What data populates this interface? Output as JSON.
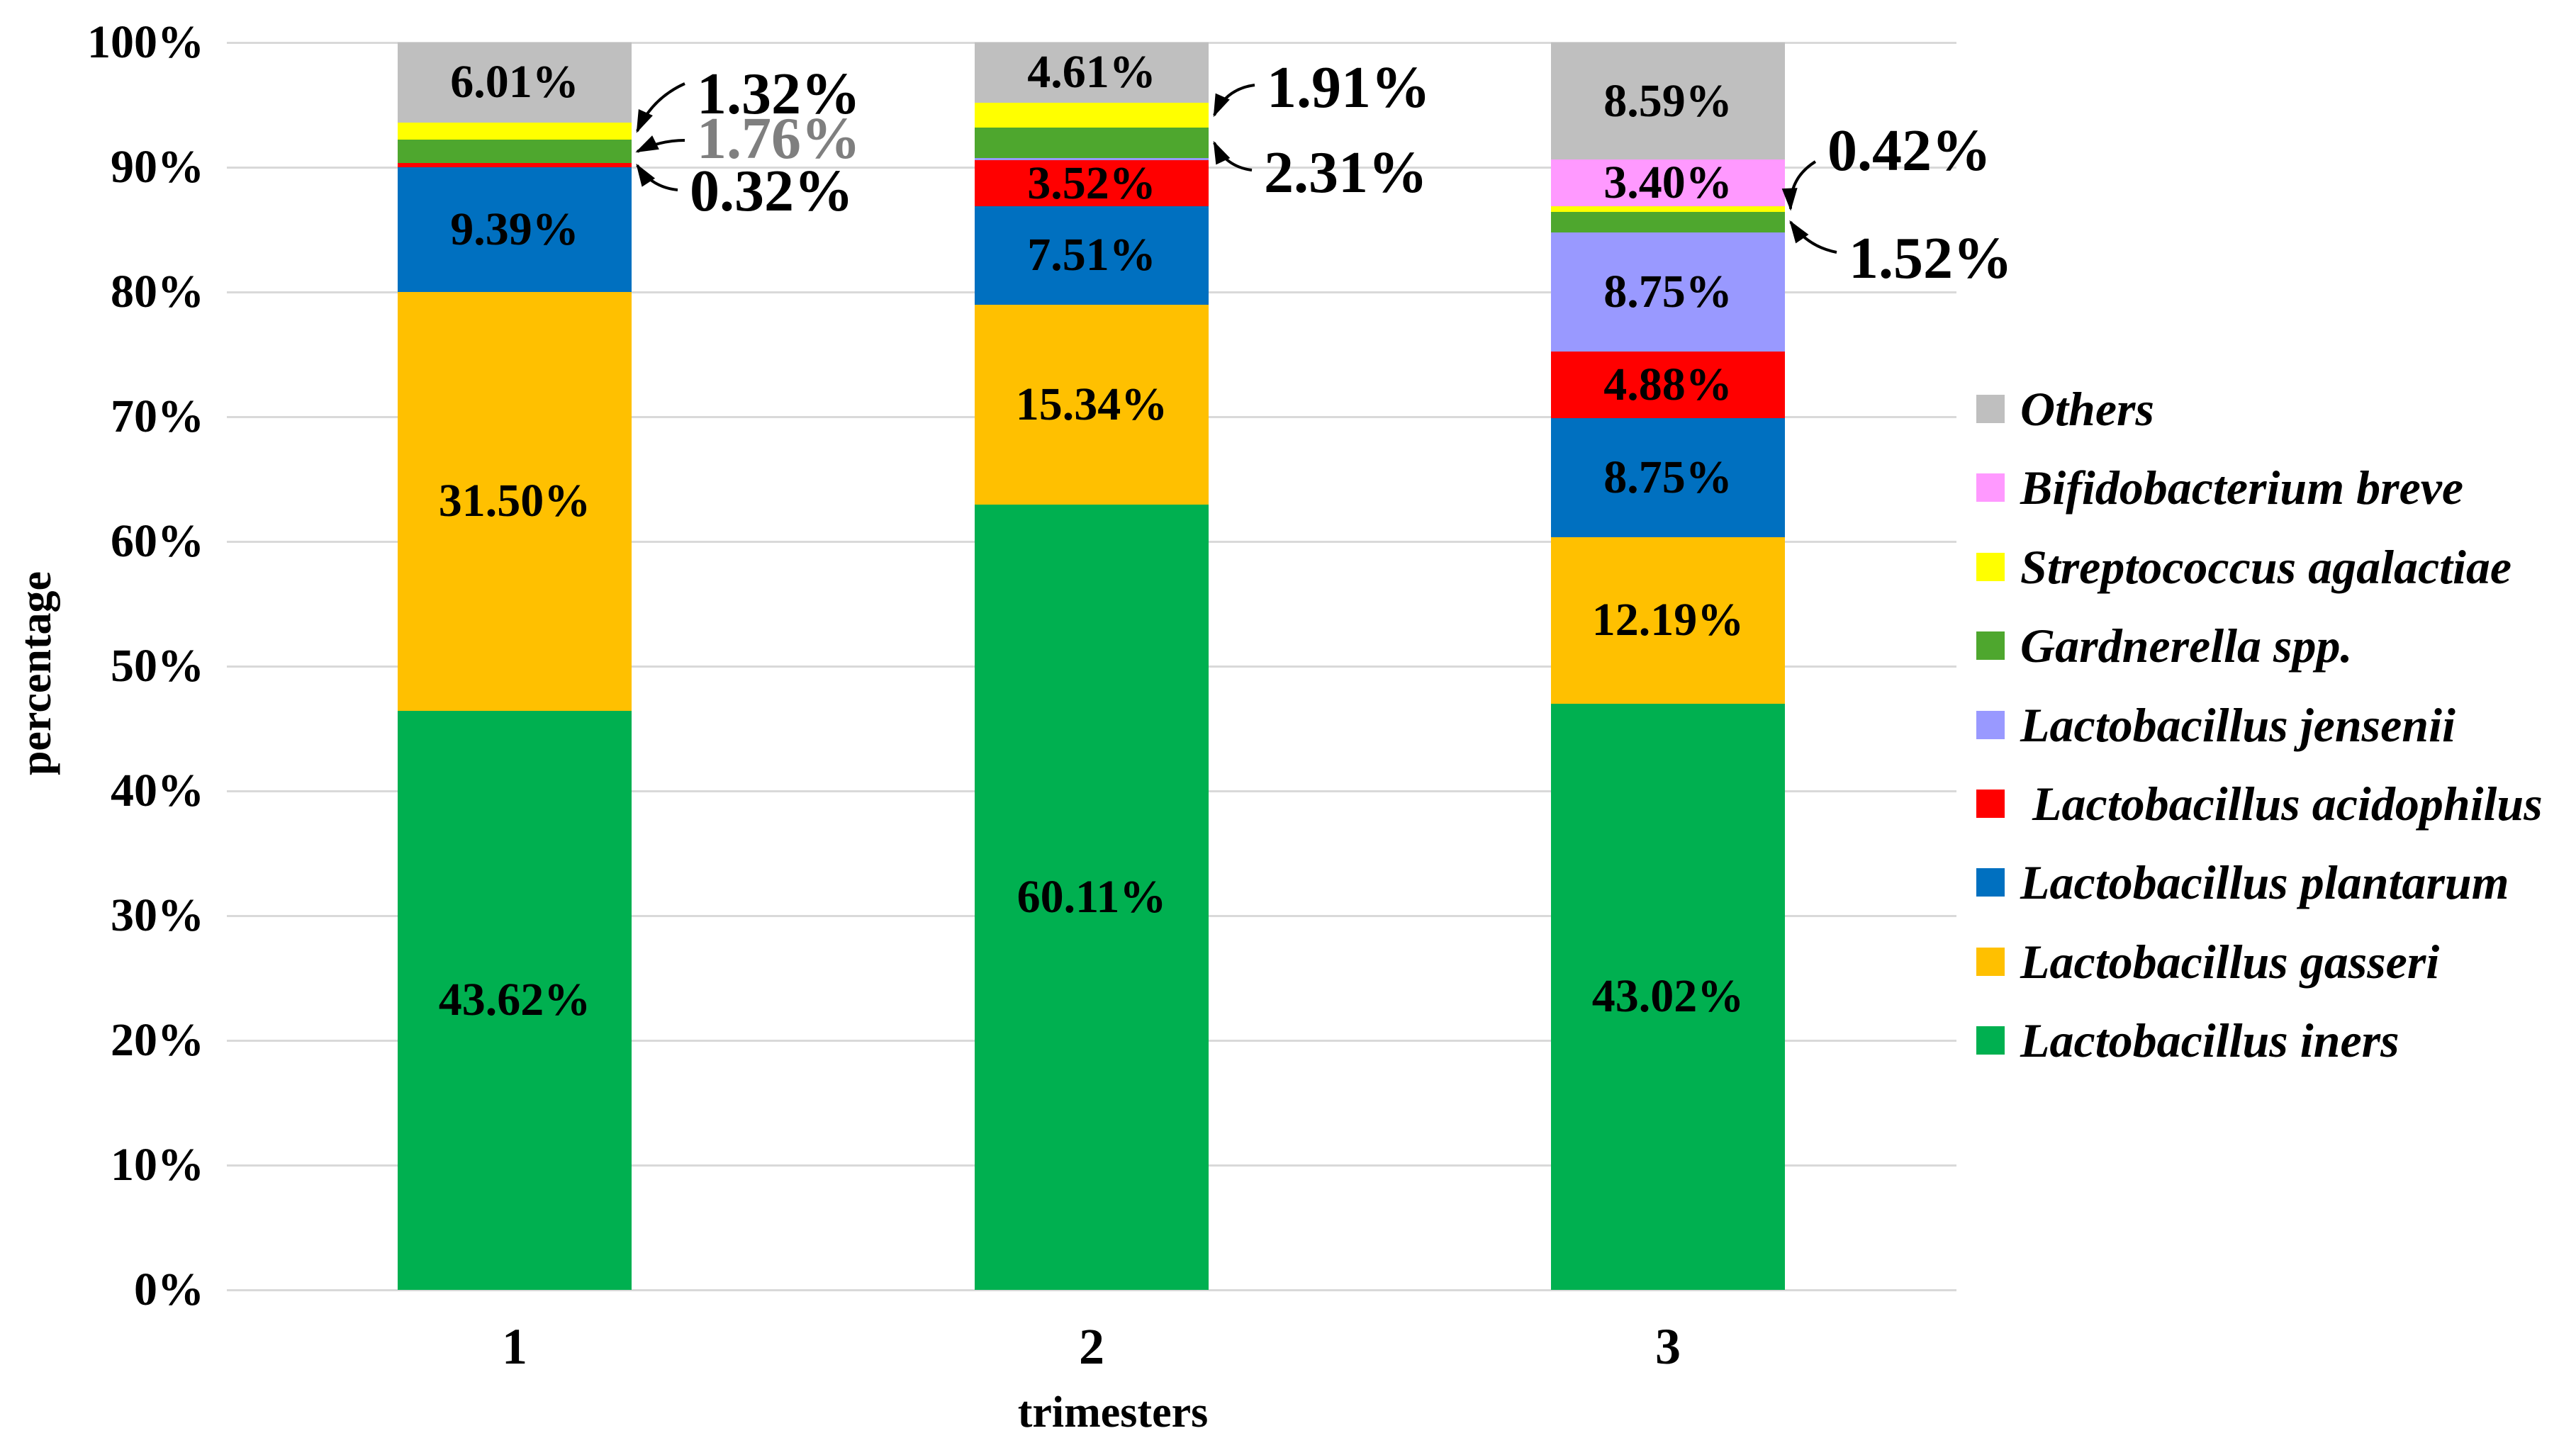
{
  "chart_data": {
    "type": "bar",
    "stacked": true,
    "normalized_per_bar": true,
    "title": "",
    "xlabel": "trimesters",
    "ylabel": "percentage",
    "categories": [
      "1",
      "2",
      "3"
    ],
    "y_ticks": [
      "0%",
      "10%",
      "20%",
      "30%",
      "40%",
      "50%",
      "60%",
      "70%",
      "80%",
      "90%",
      "100%"
    ],
    "ylim": [
      0,
      100
    ],
    "grid": true,
    "legend_position": "right",
    "series": [
      {
        "name": "Lactobacillus iners",
        "color": "#00B050",
        "values": [
          43.62,
          60.11,
          43.02
        ]
      },
      {
        "name": "Lactobacillus gasseri",
        "color": "#FFC000",
        "values": [
          31.5,
          15.34,
          12.19
        ]
      },
      {
        "name": "Lactobacillus plantarum",
        "color": "#0070C0",
        "values": [
          9.39,
          7.51,
          8.75
        ]
      },
      {
        "name": "Lactobacillus acidophilus",
        "color": "#FF0000",
        "values": [
          0.32,
          3.52,
          4.88
        ]
      },
      {
        "name": "Lactobacillus jensenii",
        "color": "#9999FF",
        "values": [
          0,
          0.2,
          8.75
        ]
      },
      {
        "name": "Gardnerella spp.",
        "color": "#4EA72E",
        "values": [
          1.76,
          2.31,
          1.52
        ]
      },
      {
        "name": "Streptococcus agalactiae",
        "color": "#FFFF00",
        "values": [
          1.32,
          1.91,
          0.42
        ]
      },
      {
        "name": "Bifidobacterium breve",
        "color": "#FF99FF",
        "values": [
          0,
          0,
          3.4
        ]
      },
      {
        "name": "Others",
        "color": "#BFBFBF",
        "values": [
          6.01,
          4.61,
          8.59
        ]
      }
    ],
    "inside_label_min_value": 3,
    "annotations": [
      {
        "bar": 0,
        "series": "Streptococcus agalactiae",
        "label": "1.32%",
        "color": "#000000"
      },
      {
        "bar": 0,
        "series": "Gardnerella spp.",
        "label": "1.76%",
        "color": "#7F7F7F"
      },
      {
        "bar": 0,
        "series": "Lactobacillus acidophilus",
        "label": "0.32%",
        "color": "#000000"
      },
      {
        "bar": 1,
        "series": "Streptococcus agalactiae",
        "label": "1.91%",
        "color": "#000000"
      },
      {
        "bar": 1,
        "series": "Gardnerella spp.",
        "label": "2.31%",
        "color": "#000000"
      },
      {
        "bar": 2,
        "series": "Streptococcus agalactiae",
        "label": "0.42%",
        "color": "#000000"
      },
      {
        "bar": 2,
        "series": "Gardnerella spp.",
        "label": "1.52%",
        "color": "#000000"
      }
    ],
    "legend": {
      "entries": [
        {
          "label": "Others",
          "color": "#BFBFBF"
        },
        {
          "label": "Bifidobacterium breve",
          "color": "#FF99FF"
        },
        {
          "label": "Streptococcus agalactiae",
          "color": "#FFFF00"
        },
        {
          "label": "Gardnerella spp.",
          "color": "#4EA72E"
        },
        {
          "label": "Lactobacillus jensenii",
          "color": "#9999FF"
        },
        {
          "label": " Lactobacillus acidophilus",
          "color": "#FF0000"
        },
        {
          "label": "Lactobacillus plantarum",
          "color": "#0070C0"
        },
        {
          "label": "Lactobacillus gasseri",
          "color": "#FFC000"
        },
        {
          "label": "Lactobacillus iners",
          "color": "#00B050"
        }
      ]
    },
    "gridline_color": "#D9D9D9"
  }
}
